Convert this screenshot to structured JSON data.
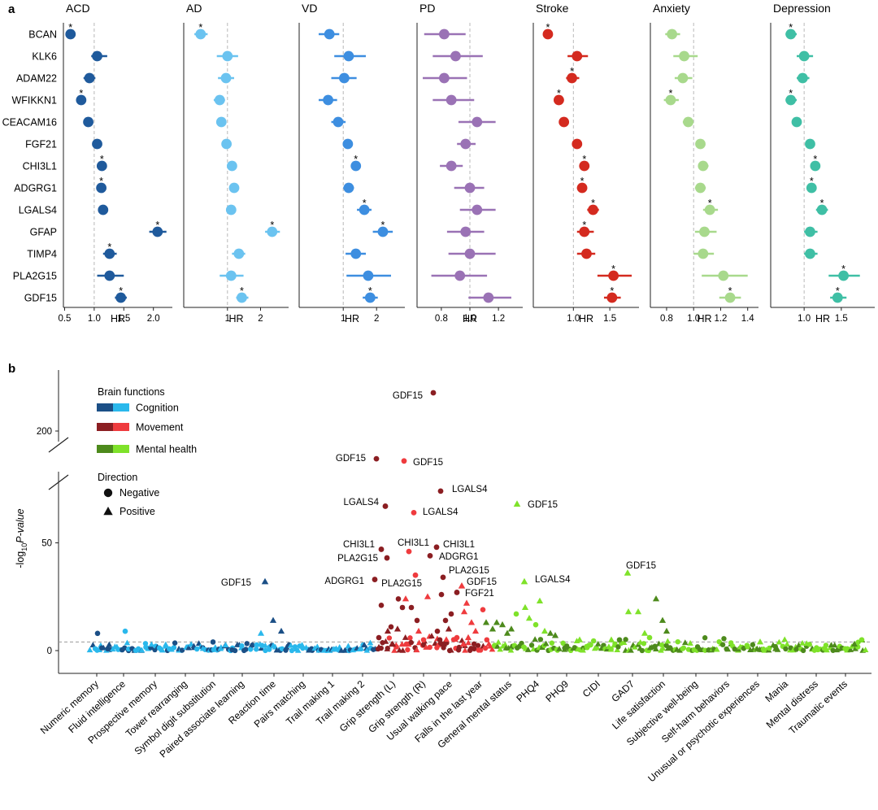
{
  "panel_a": {
    "label": "a",
    "xlabel": "HR",
    "star_symbol": "*",
    "proteins": [
      "BCAN",
      "KLK6",
      "ADAM22",
      "WFIKKN1",
      "CEACAM16",
      "FGF21",
      "CHI3L1",
      "ADGRG1",
      "LGALS4",
      "GFAP",
      "TIMP4",
      "PLA2G15",
      "GDF15"
    ]
  },
  "panel_b": {
    "label": "b",
    "ylabel_main": "-log",
    "ylabel_sub": "10",
    "ylabel_tail": "P-value",
    "legend": {
      "title1": "Brain functions",
      "cognition": "Cognition",
      "movement": "Movement",
      "mental": "Mental health",
      "title2": "Direction",
      "negative": "Negative",
      "positive": "Positive"
    },
    "categories": [
      "Numeric memory",
      "Fluid intelligence",
      "Prospective memory",
      "Tower rearranging",
      "Symbol digit substitution",
      "Paired associate learning",
      "Reaction time",
      "Pairs matching",
      "Trail making 1",
      "Trail making 2",
      "Grip strength (L)",
      "Grip strength (R)",
      "Usual walking pace",
      "Falls in the last year",
      "General mental status",
      "PHQ4",
      "PHQ9",
      "CIDI",
      "GAD7",
      "Life satisfaction",
      "Subjective well-being",
      "Self-harm behaviors",
      "Unusual or psychotic experiences",
      "Mania",
      "Mental distress",
      "Traumatic events"
    ]
  },
  "colors": {
    "acd": "#1f5a9c",
    "ad": "#6bc3f0",
    "vd": "#3d8ee0",
    "pd": "#9a72b5",
    "stroke": "#d42a1f",
    "anxiety": "#a8d98c",
    "depression": "#3fbfa5",
    "cog_dark": "#1b4f86",
    "cog_light": "#2ab8ec",
    "mov_dark": "#8b1e22",
    "mov_light": "#ef3b3e",
    "mh_dark": "#4d8a1c",
    "mh_light": "#7fe22a"
  },
  "chart_data": [
    {
      "type": "forest",
      "xlabel": "HR",
      "rows": [
        "BCAN",
        "KLK6",
        "ADAM22",
        "WFIKKN1",
        "CEACAM16",
        "FGF21",
        "CHI3L1",
        "ADGRG1",
        "LGALS4",
        "GFAP",
        "TIMP4",
        "PLA2G15",
        "GDF15"
      ],
      "panels": [
        {
          "name": "ACD",
          "color": "#1f5a9c",
          "log": false,
          "xlim": [
            0.48,
            2.32
          ],
          "ticks": [
            0.5,
            1.0,
            1.5,
            2.0
          ],
          "tick_labels": [
            "0.5",
            "1.0",
            "1.5",
            "2.0"
          ],
          "hr": [
            0.6,
            1.05,
            0.92,
            0.78,
            0.9,
            1.05,
            1.13,
            1.12,
            1.15,
            2.07,
            1.26,
            1.26,
            1.45
          ],
          "lo": [
            0.55,
            0.95,
            0.82,
            0.72,
            0.85,
            1.0,
            1.07,
            1.05,
            1.08,
            1.93,
            1.15,
            1.05,
            1.35
          ],
          "hi": [
            0.65,
            1.22,
            1.02,
            0.85,
            0.96,
            1.1,
            1.2,
            1.2,
            1.22,
            2.22,
            1.38,
            1.5,
            1.55
          ],
          "star": [
            1,
            0,
            0,
            1,
            0,
            0,
            1,
            1,
            0,
            1,
            1,
            0,
            1
          ]
        },
        {
          "name": "AD",
          "color": "#6bc3f0",
          "log": true,
          "xlim": [
            0.4,
            3.6
          ],
          "ticks": [
            1,
            2
          ],
          "tick_labels": [
            "1",
            "2"
          ],
          "hr": [
            0.57,
            1.0,
            0.97,
            0.85,
            0.88,
            0.98,
            1.1,
            1.15,
            1.08,
            2.55,
            1.27,
            1.08,
            1.35
          ],
          "lo": [
            0.5,
            0.8,
            0.82,
            0.75,
            0.8,
            0.92,
            1.02,
            1.08,
            0.98,
            2.2,
            1.1,
            0.85,
            1.2
          ],
          "hi": [
            0.66,
            1.25,
            1.15,
            0.95,
            0.96,
            1.05,
            1.18,
            1.22,
            1.18,
            3.0,
            1.45,
            1.4,
            1.55
          ],
          "star": [
            1,
            0,
            0,
            0,
            0,
            0,
            0,
            0,
            0,
            1,
            0,
            0,
            1
          ]
        },
        {
          "name": "VD",
          "color": "#3d8ee0",
          "log": true,
          "xlim": [
            0.4,
            3.6
          ],
          "ticks": [
            1,
            2
          ],
          "tick_labels": [
            "1",
            "2"
          ],
          "hr": [
            0.75,
            1.12,
            1.02,
            0.73,
            0.9,
            1.1,
            1.3,
            1.12,
            1.55,
            2.28,
            1.3,
            1.68,
            1.75
          ],
          "lo": [
            0.6,
            0.83,
            0.78,
            0.6,
            0.78,
            1.03,
            1.18,
            1.0,
            1.33,
            1.85,
            1.05,
            1.07,
            1.5
          ],
          "hi": [
            0.92,
            1.6,
            1.32,
            0.88,
            1.05,
            1.17,
            1.42,
            1.25,
            1.8,
            2.8,
            1.6,
            2.7,
            2.05
          ],
          "star": [
            0,
            0,
            0,
            0,
            0,
            0,
            1,
            0,
            1,
            1,
            0,
            0,
            1
          ]
        },
        {
          "name": "PD",
          "color": "#9a72b5",
          "log": false,
          "xlim": [
            0.63,
            1.37
          ],
          "ticks": [
            0.8,
            1.0,
            1.2
          ],
          "tick_labels": [
            "0.8",
            "1.0",
            "1.2"
          ],
          "hr": [
            0.82,
            0.9,
            0.82,
            0.87,
            1.05,
            0.97,
            0.87,
            1.0,
            1.05,
            0.97,
            1.0,
            0.93,
            1.13
          ],
          "lo": [
            0.68,
            0.74,
            0.67,
            0.74,
            0.92,
            0.91,
            0.79,
            0.89,
            0.93,
            0.84,
            0.85,
            0.73,
            0.99
          ],
          "hi": [
            0.97,
            1.09,
            0.98,
            1.03,
            1.18,
            1.04,
            0.95,
            1.1,
            1.18,
            1.1,
            1.18,
            1.12,
            1.29
          ],
          "star": [
            0,
            0,
            0,
            0,
            0,
            0,
            0,
            0,
            0,
            0,
            0,
            0,
            0
          ]
        },
        {
          "name": "Stroke",
          "color": "#d42a1f",
          "log": false,
          "xlim": [
            0.45,
            1.9
          ],
          "ticks": [
            1.0,
            1.5
          ],
          "tick_labels": [
            "1.0",
            "1.5"
          ],
          "hr": [
            0.65,
            1.05,
            0.98,
            0.8,
            0.87,
            1.05,
            1.15,
            1.12,
            1.27,
            1.15,
            1.18,
            1.55,
            1.53
          ],
          "lo": [
            0.6,
            0.92,
            0.9,
            0.75,
            0.83,
            1.0,
            1.08,
            1.05,
            1.19,
            1.05,
            1.05,
            1.33,
            1.42
          ],
          "hi": [
            0.7,
            1.2,
            1.08,
            0.87,
            0.91,
            1.1,
            1.22,
            1.17,
            1.35,
            1.28,
            1.3,
            1.8,
            1.65
          ],
          "star": [
            1,
            0,
            1,
            1,
            0,
            0,
            1,
            1,
            1,
            1,
            0,
            1,
            1
          ]
        },
        {
          "name": "Anxiety",
          "color": "#a8d98c",
          "log": false,
          "xlim": [
            0.68,
            1.48
          ],
          "ticks": [
            0.8,
            1.0,
            1.2,
            1.4
          ],
          "tick_labels": [
            "0.8",
            "1.0",
            "1.2",
            "1.4"
          ],
          "hr": [
            0.84,
            0.93,
            0.92,
            0.83,
            0.96,
            1.05,
            1.07,
            1.05,
            1.12,
            1.08,
            1.07,
            1.22,
            1.27
          ],
          "lo": [
            0.79,
            0.85,
            0.86,
            0.78,
            0.92,
            1.02,
            1.04,
            1.01,
            1.07,
            1.01,
            1.0,
            1.06,
            1.19
          ],
          "hi": [
            0.9,
            1.03,
            0.99,
            0.89,
            1.0,
            1.08,
            1.11,
            1.09,
            1.18,
            1.17,
            1.15,
            1.4,
            1.35
          ],
          "star": [
            0,
            0,
            0,
            1,
            0,
            0,
            0,
            0,
            1,
            0,
            0,
            0,
            1
          ]
        },
        {
          "name": "Depression",
          "color": "#3fbfa5",
          "log": false,
          "xlim": [
            0.55,
            1.95
          ],
          "ticks": [
            1.0,
            1.5
          ],
          "tick_labels": [
            "1.0",
            "1.5"
          ],
          "hr": [
            0.82,
            1.0,
            0.98,
            0.82,
            0.9,
            1.08,
            1.15,
            1.1,
            1.24,
            1.08,
            1.08,
            1.53,
            1.45
          ],
          "lo": [
            0.75,
            0.9,
            0.9,
            0.75,
            0.87,
            1.05,
            1.1,
            1.05,
            1.16,
            1.0,
            1.0,
            1.33,
            1.35
          ],
          "hi": [
            0.9,
            1.12,
            1.07,
            0.9,
            0.94,
            1.12,
            1.2,
            1.16,
            1.32,
            1.18,
            1.18,
            1.75,
            1.57
          ],
          "star": [
            1,
            0,
            0,
            1,
            0,
            0,
            1,
            1,
            1,
            0,
            0,
            1,
            1
          ]
        }
      ]
    },
    {
      "type": "scatter",
      "ylabel": "-log10 P-value",
      "y_ticks_lower": [
        0,
        50
      ],
      "y_ticks_upper": [
        200
      ],
      "axis_break_between": [
        100,
        190
      ],
      "threshold": 4,
      "categories": [
        "Numeric memory",
        "Fluid intelligence",
        "Prospective memory",
        "Tower rearranging",
        "Symbol digit substitution",
        "Paired associate learning",
        "Reaction time",
        "Pairs matching",
        "Trail making 1",
        "Trail making 2",
        "Grip strength (L)",
        "Grip strength (R)",
        "Usual walking pace",
        "Falls in the last year",
        "General mental status",
        "PHQ4",
        "PHQ9",
        "CIDI",
        "GAD7",
        "Life satisfaction",
        "Subjective well-being",
        "Self-harm behaviors",
        "Unusual or psychotic experiences",
        "Mania",
        "Mental distress",
        "Traumatic events"
      ],
      "labeled_points": [
        {
          "label": "GDF15",
          "category": "Reaction time",
          "y": 32,
          "shape": "triangle",
          "group": "Cognition"
        },
        {
          "label": "GDF15",
          "category": "Grip strength (R)",
          "y": 210,
          "shape": "circle",
          "group": "Movement"
        },
        {
          "label": "GDF15",
          "category": "Grip strength (L)",
          "y": 89,
          "shape": "circle",
          "group": "Movement"
        },
        {
          "label": "GDF15",
          "category": "Grip strength (R)",
          "y": 88,
          "shape": "circle",
          "group": "Movement"
        },
        {
          "label": "LGALS4",
          "category": "Usual walking pace",
          "y": 74,
          "shape": "circle",
          "group": "Movement"
        },
        {
          "label": "LGALS4",
          "category": "Grip strength (L)",
          "y": 67,
          "shape": "circle",
          "group": "Movement"
        },
        {
          "label": "LGALS4",
          "category": "Grip strength (R)",
          "y": 64,
          "shape": "circle",
          "group": "Movement"
        },
        {
          "label": "GDF15",
          "category": "General mental status",
          "y": 68,
          "shape": "triangle",
          "group": "Mental health"
        },
        {
          "label": "CHI3L1",
          "category": "Grip strength (L)",
          "y": 47,
          "shape": "circle",
          "group": "Movement"
        },
        {
          "label": "CHI3L1",
          "category": "Grip strength (R)",
          "y": 46,
          "shape": "circle",
          "group": "Movement"
        },
        {
          "label": "CHI3L1",
          "category": "Usual walking pace",
          "y": 48,
          "shape": "circle",
          "group": "Movement"
        },
        {
          "label": "PLA2G15",
          "category": "Grip strength (L)",
          "y": 43,
          "shape": "circle",
          "group": "Movement"
        },
        {
          "label": "ADGRG1",
          "category": "Usual walking pace",
          "y": 44,
          "shape": "circle",
          "group": "Movement"
        },
        {
          "label": "ADGRG1",
          "category": "Grip strength (L)",
          "y": 33,
          "shape": "circle",
          "group": "Movement"
        },
        {
          "label": "PLA2G15",
          "category": "Grip strength (R)",
          "y": 35,
          "shape": "circle",
          "group": "Movement"
        },
        {
          "label": "PLA2G15",
          "category": "Usual walking pace",
          "y": 34,
          "shape": "circle",
          "group": "Movement"
        },
        {
          "label": "GDF15",
          "category": "Falls in the last year",
          "y": 30,
          "shape": "triangle",
          "group": "Movement"
        },
        {
          "label": "FGF21",
          "category": "Falls in the last year",
          "y": 27,
          "shape": "circle",
          "group": "Movement"
        },
        {
          "label": "LGALS4",
          "category": "PHQ4",
          "y": 32,
          "shape": "triangle",
          "group": "Mental health"
        },
        {
          "label": "GDF15",
          "category": "Life satisfaction",
          "y": 36,
          "shape": "triangle",
          "group": "Mental health"
        }
      ]
    }
  ]
}
